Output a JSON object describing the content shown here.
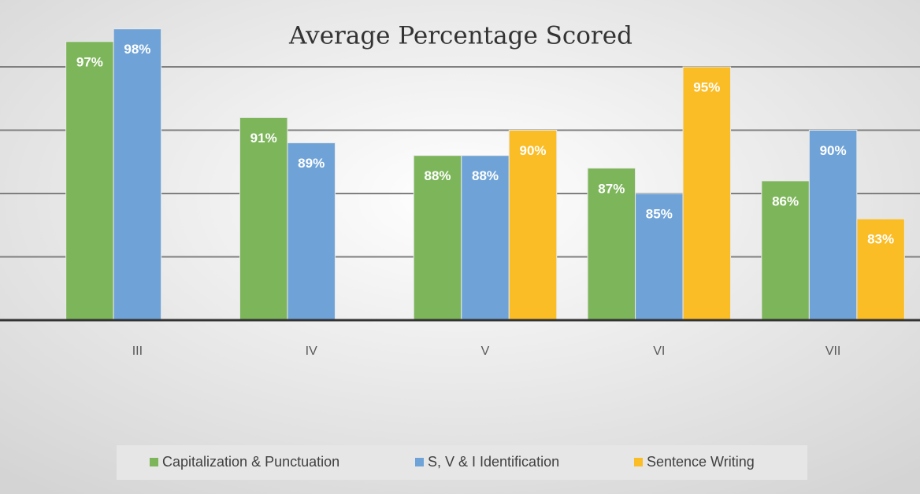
{
  "chart_data": {
    "type": "bar",
    "title": "Average Percentage Scored",
    "categories": [
      "III",
      "IV",
      "V",
      "VI",
      "VII"
    ],
    "series": [
      {
        "name": "Capitalization & Punctuation",
        "color": "#7db55a",
        "values": [
          97,
          91,
          88,
          87,
          86
        ],
        "value_labels": [
          "97%",
          "91%",
          "88%",
          "87%",
          "86%"
        ]
      },
      {
        "name": "S, V & I Identification",
        "color": "#6fa3d8",
        "values": [
          98,
          89,
          88,
          85,
          90
        ],
        "value_labels": [
          "98%",
          "89%",
          "88%",
          "85%",
          "90%"
        ]
      },
      {
        "name": "Sentence Writing",
        "color": "#fbbd26",
        "values": [
          null,
          null,
          90,
          95,
          83
        ],
        "value_labels": [
          null,
          null,
          "90%",
          "95%",
          "83%"
        ]
      }
    ],
    "ylim": [
      75,
      100
    ],
    "yticks": [
      80,
      85,
      90,
      95
    ],
    "grid": true
  }
}
